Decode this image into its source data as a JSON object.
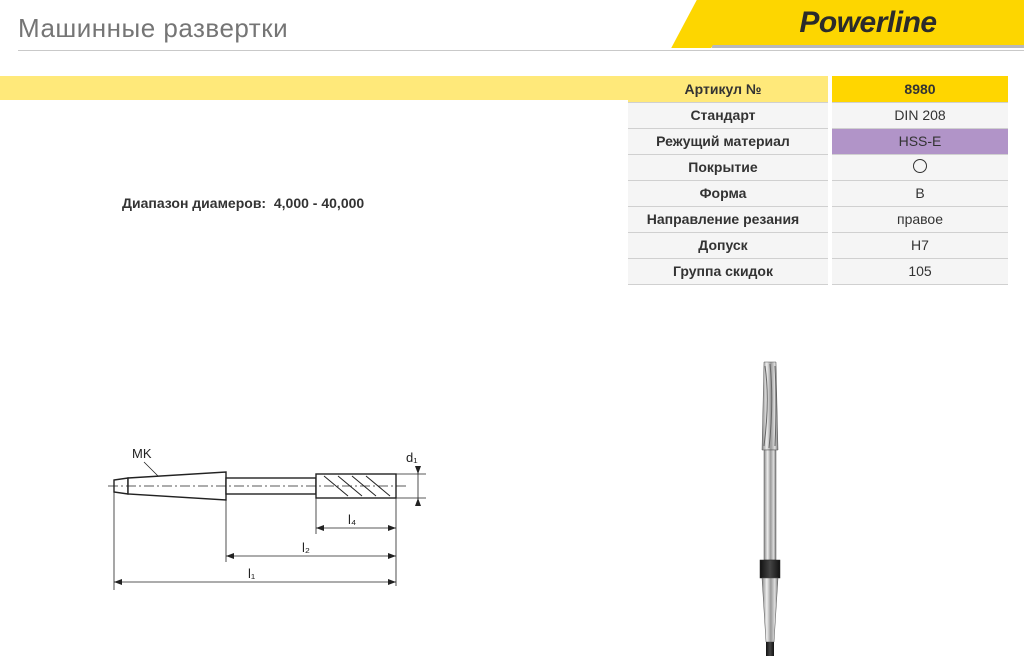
{
  "page": {
    "title": "Машинные развертки",
    "brand": "Powerline"
  },
  "range": {
    "label": "Диапазон диамеров:",
    "value": "4,000 - 40,000"
  },
  "specs": [
    {
      "label": "Артикул №",
      "value": "8980",
      "row_class": "row-article"
    },
    {
      "label": "Стандарт",
      "value": "DIN 208",
      "row_class": ""
    },
    {
      "label": "Режущий материал",
      "value": "HSS-E",
      "row_class": "row-mat"
    },
    {
      "label": "Покрытие",
      "value": "__CIRCLE__",
      "row_class": ""
    },
    {
      "label": "Форма",
      "value": "B",
      "row_class": ""
    },
    {
      "label": "Направление резания",
      "value": "правое",
      "row_class": ""
    },
    {
      "label": "Допуск",
      "value": "H7",
      "row_class": ""
    },
    {
      "label": "Группа скидок",
      "value": "105",
      "row_class": ""
    }
  ],
  "drawing": {
    "labels": {
      "mk": "MK",
      "d1": "d₁",
      "l1": "l₁",
      "l2": "l₂",
      "l4": "l₄"
    }
  },
  "colors": {
    "brand_bg": "#fdd600",
    "yellow_light": "#ffe97a",
    "purple": "#b194c8",
    "grey_bg": "#f5f5f5",
    "rule": "#c9c9c9",
    "text": "#333333",
    "title": "#757575"
  }
}
